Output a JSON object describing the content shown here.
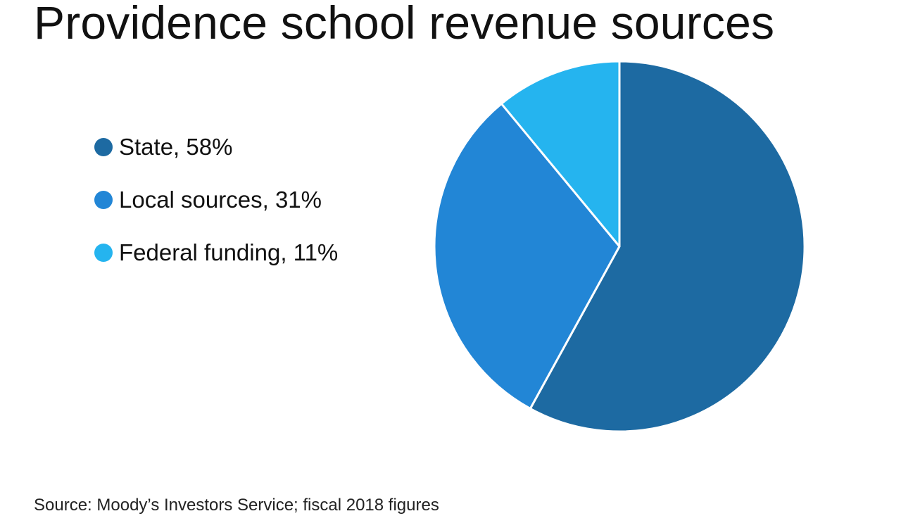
{
  "chart_data": {
    "type": "pie",
    "title": "Providence school revenue sources",
    "categories": [
      "State",
      "Local sources",
      "Federal funding"
    ],
    "values": [
      58,
      31,
      11
    ],
    "unit": "%",
    "colors": [
      "#1d6aa2",
      "#2286d6",
      "#25b4ef"
    ],
    "legend": [
      {
        "label": "State, 58%",
        "color": "#1d6aa2"
      },
      {
        "label": "Local sources, 31%",
        "color": "#2286d6"
      },
      {
        "label": "Federal funding, 11%",
        "color": "#25b4ef"
      }
    ],
    "legend_position": "left"
  },
  "source": "Source: Moody’s Investors Service; fiscal 2018 figures"
}
